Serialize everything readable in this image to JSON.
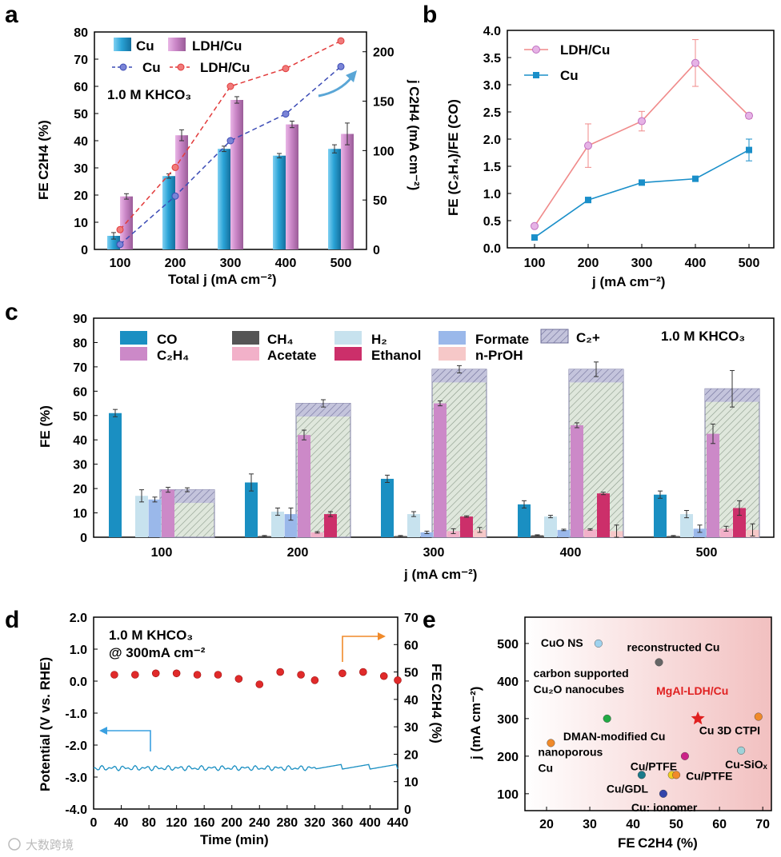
{
  "panels": {
    "a": "a",
    "b": "b",
    "c": "c",
    "d": "d",
    "e": "e"
  },
  "panel_a": {
    "annotation": "1.0 M KHCO₃",
    "xlabel": "Total j (mA cm⁻²)",
    "ylabel_left": "FE C2H4 (%)",
    "ylabel_right": "j C2H4 (mA cm⁻²)",
    "legend": {
      "bar_cu": "Cu",
      "bar_ldh": "LDH/Cu",
      "line_cu": "Cu",
      "line_ldh": "LDH/Cu"
    },
    "colors": {
      "cu": "#2aa3d6",
      "ldh": "#c985c6",
      "cu_line": "#3b4bb5",
      "ldh_line": "#e23b3b",
      "arrow": "#5aa6d6"
    }
  },
  "panel_b": {
    "xlabel": "j (mA cm⁻²)",
    "ylabel": "FE (C₂H₄)/FE (CO)",
    "legend": {
      "ldh": "LDH/Cu",
      "cu": "Cu"
    },
    "colors": {
      "ldh": "#f08a8a",
      "cu": "#1a8fc9"
    }
  },
  "panel_c": {
    "annotation": "1.0 M KHCO₃",
    "xlabel": "j (mA cm⁻²)",
    "ylabel": "FE (%)",
    "legend": [
      "CO",
      "CH₄",
      "H₂",
      "Formate",
      "C₂+",
      "C₂H₄",
      "Acetate",
      "Ethanol",
      "n-PrOH"
    ],
    "colors": {
      "CO": "#1a8fc2",
      "CH4": "#555555",
      "H2": "#c7e2ee",
      "Formate": "#9ab8ea",
      "C2+": "#b7b7d6",
      "C2H4": "#cc89c8",
      "Acetate": "#f2b1c9",
      "Ethanol": "#cc2f6a",
      "n-PrOH": "#f6c8c8"
    }
  },
  "panel_d": {
    "annotation_line1": "1.0 M KHCO₃",
    "annotation_line2": "@ 300mA cm⁻²",
    "xlabel": "Time (min)",
    "ylabel_left": "Potential (V vs. RHE)",
    "ylabel_right": "FE C2H4 (%)",
    "colors": {
      "potential": "#1a8fc2",
      "fe": "#e02a2a",
      "left_arrow": "#3aa0e0",
      "right_arrow": "#f08a2a"
    }
  },
  "panel_e": {
    "xlabel": "FE C2H4 (%)",
    "ylabel": "j (mA cm⁻²)",
    "colors": {
      "highlight": "#e02020",
      "bg_left": "#ffffff",
      "bg_right": "#f4c6c6"
    }
  },
  "watermark": "大数跨境",
  "chart_data": [
    {
      "type": "bar",
      "panel": "a",
      "categories": [
        "100",
        "200",
        "300",
        "400",
        "500"
      ],
      "series": [
        {
          "name": "Cu",
          "axis": "left",
          "values": [
            5,
            27,
            37,
            34.5,
            37
          ],
          "errors": [
            1.2,
            0.8,
            1.0,
            0.8,
            1.5
          ]
        },
        {
          "name": "LDH/Cu",
          "axis": "left",
          "values": [
            19.5,
            42,
            55,
            46,
            42.5
          ],
          "errors": [
            1.0,
            2.0,
            1.2,
            1.2,
            4.0
          ]
        },
        {
          "name": "Cu",
          "type": "line",
          "axis": "right",
          "values": [
            5,
            54,
            110,
            137,
            185
          ]
        },
        {
          "name": "LDH/Cu",
          "type": "line",
          "axis": "right",
          "values": [
            20,
            83,
            165,
            183,
            211
          ]
        }
      ],
      "ylim_left": [
        0,
        80
      ],
      "ylim_right": [
        0,
        220
      ],
      "yticks_left": [
        0,
        10,
        20,
        30,
        40,
        50,
        60,
        70,
        80
      ],
      "yticks_right": [
        0,
        50,
        100,
        150,
        200
      ]
    },
    {
      "type": "line",
      "panel": "b",
      "x": [
        100,
        200,
        300,
        400,
        500
      ],
      "series": [
        {
          "name": "LDH/Cu",
          "values": [
            0.4,
            1.88,
            2.33,
            3.4,
            2.43
          ],
          "errors": [
            0.03,
            0.4,
            0.18,
            0.43,
            0.05
          ]
        },
        {
          "name": "Cu",
          "values": [
            0.19,
            0.88,
            1.2,
            1.27,
            1.8
          ],
          "errors": [
            0.03,
            0.05,
            0.02,
            0.03,
            0.2
          ]
        }
      ],
      "ylim": [
        0,
        4.0
      ],
      "yticks": [
        0.0,
        0.5,
        1.0,
        1.5,
        2.0,
        2.5,
        3.0,
        3.5,
        4.0
      ]
    },
    {
      "type": "bar",
      "panel": "c",
      "categories": [
        "100",
        "200",
        "300",
        "400",
        "500"
      ],
      "series": [
        {
          "name": "CO",
          "values": [
            51,
            22.5,
            24,
            13.5,
            17.5
          ],
          "errors": [
            1.5,
            3.5,
            1.5,
            1.5,
            1.5
          ]
        },
        {
          "name": "CH₄",
          "values": [
            0,
            0.5,
            0.5,
            0.8,
            0.5
          ],
          "errors": [
            0,
            0.2,
            0.2,
            0.2,
            0.2
          ]
        },
        {
          "name": "H₂",
          "values": [
            17,
            10.5,
            9.5,
            8.5,
            9.5
          ],
          "errors": [
            2.5,
            1.5,
            1.0,
            0.5,
            1.5
          ]
        },
        {
          "name": "Formate",
          "values": [
            15.5,
            9.5,
            2,
            3,
            3.5
          ],
          "errors": [
            1.0,
            2.5,
            0.5,
            0.3,
            1.5
          ]
        },
        {
          "name": "C₂H₄",
          "values": [
            19.5,
            42,
            55,
            46,
            42.5
          ],
          "errors": [
            1.0,
            2.0,
            1.0,
            1.0,
            4.0
          ]
        },
        {
          "name": "Acetate",
          "values": [
            0,
            2,
            2.5,
            3.2,
            3.5
          ],
          "errors": [
            0,
            0.3,
            1.0,
            0.3,
            1.0
          ]
        },
        {
          "name": "Ethanol",
          "values": [
            0,
            9.5,
            8.5,
            18,
            12
          ],
          "errors": [
            0,
            1.0,
            0.3,
            0.5,
            3.0
          ]
        },
        {
          "name": "n-PrOH",
          "values": [
            0,
            0,
            3,
            2.5,
            3
          ],
          "errors": [
            0,
            0,
            1.0,
            2.5,
            2.5
          ]
        },
        {
          "name": "C₂+",
          "values": [
            19.5,
            55,
            69,
            69,
            61
          ],
          "errors": [
            0.8,
            1.5,
            1.5,
            3.0,
            7.5
          ]
        }
      ],
      "ylim": [
        0,
        90
      ],
      "yticks": [
        0,
        10,
        20,
        30,
        40,
        50,
        60,
        70,
        80,
        90
      ]
    },
    {
      "type": "scatter",
      "panel": "d",
      "series": [
        {
          "name": "FE C2H4",
          "axis": "right",
          "x": [
            30,
            60,
            90,
            120,
            150,
            180,
            210,
            240,
            270,
            300,
            320,
            360,
            390,
            420,
            440
          ],
          "values": [
            49,
            49,
            49.5,
            49.5,
            49,
            49,
            47.5,
            45.5,
            50,
            49,
            47,
            49.5,
            50,
            48.5,
            47
          ]
        },
        {
          "name": "Potential",
          "type": "line",
          "axis": "left",
          "xlim": [
            0,
            440
          ],
          "mean": -2.72,
          "amplitude": 0.08
        }
      ],
      "xlim": [
        0,
        440
      ],
      "ylim_left": [
        -4.0,
        2.0
      ],
      "ylim_right": [
        0,
        70
      ],
      "xticks": [
        0,
        40,
        80,
        120,
        160,
        200,
        240,
        280,
        320,
        360,
        400,
        440
      ],
      "yticks_left": [
        -4.0,
        -3.0,
        -2.0,
        -1.0,
        0.0,
        1.0,
        2.0
      ],
      "yticks_right": [
        0,
        10,
        20,
        30,
        40,
        50,
        60,
        70
      ]
    },
    {
      "type": "scatter",
      "panel": "e",
      "points": [
        {
          "label": "CuO NS",
          "x": 32,
          "y": 500,
          "color": "#9fd2ee"
        },
        {
          "label": "reconstructed Cu",
          "x": 46,
          "y": 450,
          "color": "#666666"
        },
        {
          "label": "carbon supported Cu₂O nanocubes",
          "x": 34,
          "y": 300,
          "color": "#22aa44"
        },
        {
          "label": "MgAl-LDH/Cu",
          "x": 55,
          "y": 300,
          "color": "#e02020",
          "marker": "star"
        },
        {
          "label": "Cu 3D CTPI",
          "x": 69,
          "y": 305,
          "color": "#f08a2a"
        },
        {
          "label": "nanoporous Cu",
          "x": 21,
          "y": 235,
          "color": "#f08a2a"
        },
        {
          "label": "DMAN-modified Cu",
          "x": 52,
          "y": 200,
          "color": "#cc2288"
        },
        {
          "label": "Cu-SiOₓ",
          "x": 65,
          "y": 215,
          "color": "#9fd2d8"
        },
        {
          "label": "Cu/PTFE",
          "x": 49,
          "y": 150,
          "color": "#f0d020"
        },
        {
          "label": "Cu/PTFE",
          "x": 50,
          "y": 150,
          "color": "#f08a2a"
        },
        {
          "label": "Cu/GDL",
          "x": 42,
          "y": 150,
          "color": "#1a7a8a"
        },
        {
          "label": "Cu: ionomer",
          "x": 47,
          "y": 100,
          "color": "#3344aa"
        }
      ],
      "xlim": [
        15,
        72
      ],
      "ylim": [
        55,
        570
      ],
      "xticks": [
        20,
        30,
        40,
        50,
        60,
        70
      ],
      "yticks": [
        100,
        200,
        300,
        400,
        500
      ]
    }
  ]
}
